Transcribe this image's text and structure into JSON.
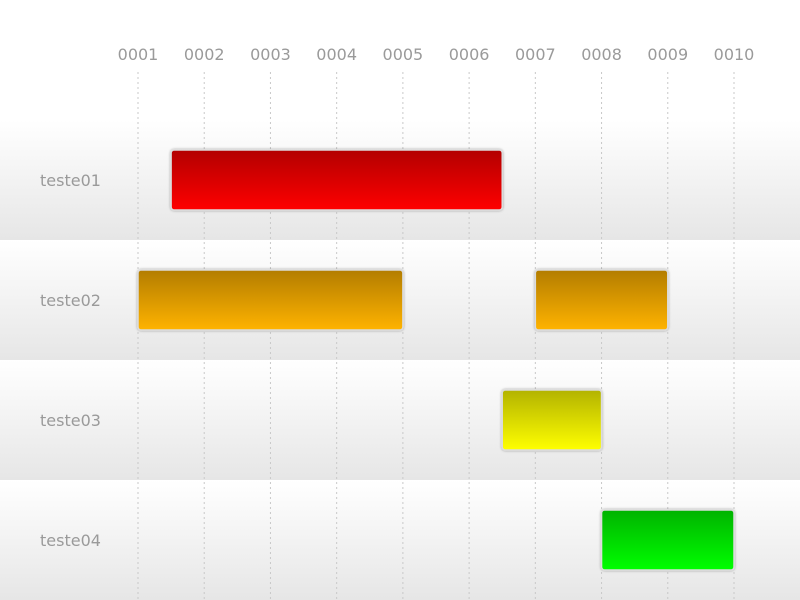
{
  "chart_data": {
    "type": "gantt",
    "title": "",
    "xlabel": "",
    "ylabel": "",
    "x_ticks": [
      "0001",
      "0002",
      "0003",
      "0004",
      "0005",
      "0006",
      "0007",
      "0008",
      "0009",
      "0010"
    ],
    "xlim": [
      1,
      10
    ],
    "grid": true,
    "legend": "none",
    "rows": [
      {
        "label": "teste01",
        "color_top": "#b30000",
        "color_bottom": "#ff0000",
        "bars": [
          {
            "start": 1.5,
            "end": 6.5
          }
        ]
      },
      {
        "label": "teste02",
        "color_top": "#b37d00",
        "color_bottom": "#ffb300",
        "bars": [
          {
            "start": 1,
            "end": 5
          },
          {
            "start": 7,
            "end": 9
          }
        ]
      },
      {
        "label": "teste03",
        "color_top": "#b3b300",
        "color_bottom": "#ffff00",
        "bars": [
          {
            "start": 6.5,
            "end": 8
          }
        ]
      },
      {
        "label": "teste04",
        "color_top": "#00b300",
        "color_bottom": "#00ff00",
        "bars": [
          {
            "start": 8,
            "end": 10
          }
        ]
      }
    ]
  }
}
